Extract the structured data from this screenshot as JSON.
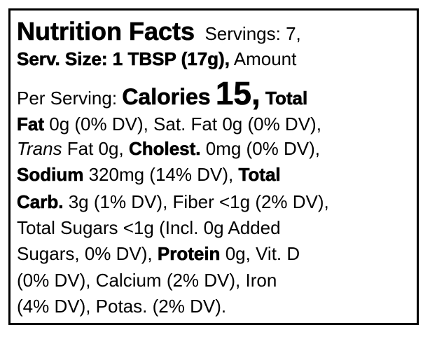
{
  "label": {
    "title": "Nutrition Facts",
    "servings": "Servings: 7,",
    "serving_size": "Serv. Size: 1 TBSP (17g),",
    "amount": "Amount",
    "per_serving": "Per Serving:",
    "calories_label": "Calories",
    "calories_value": "15,",
    "fat_label_1": "Total",
    "fat_label_2": "Fat",
    "fat_text": "0g (0% DV), Sat. Fat 0g (0% DV),",
    "trans_label": "Trans",
    "trans_text": "Fat 0g,",
    "cholest_label": "Cholest.",
    "cholest_text": "0mg (0% DV),",
    "sodium_label": "Sodium",
    "sodium_text": "320mg (14% DV),",
    "carb_label_1": "Total",
    "carb_label_2": "Carb.",
    "carb_text": "3g (1% DV), Fiber <1g (2% DV),",
    "sugars_text_1": "Total Sugars <1g (Incl. 0g Added",
    "sugars_text_2": "Sugars, 0% DV),",
    "protein_label": "Protein",
    "protein_text": "0g, Vit. D",
    "vitamins_text_1": "(0% DV), Calcium (2% DV), Iron",
    "vitamins_text_2": "(4% DV), Potas. (2% DV)."
  }
}
